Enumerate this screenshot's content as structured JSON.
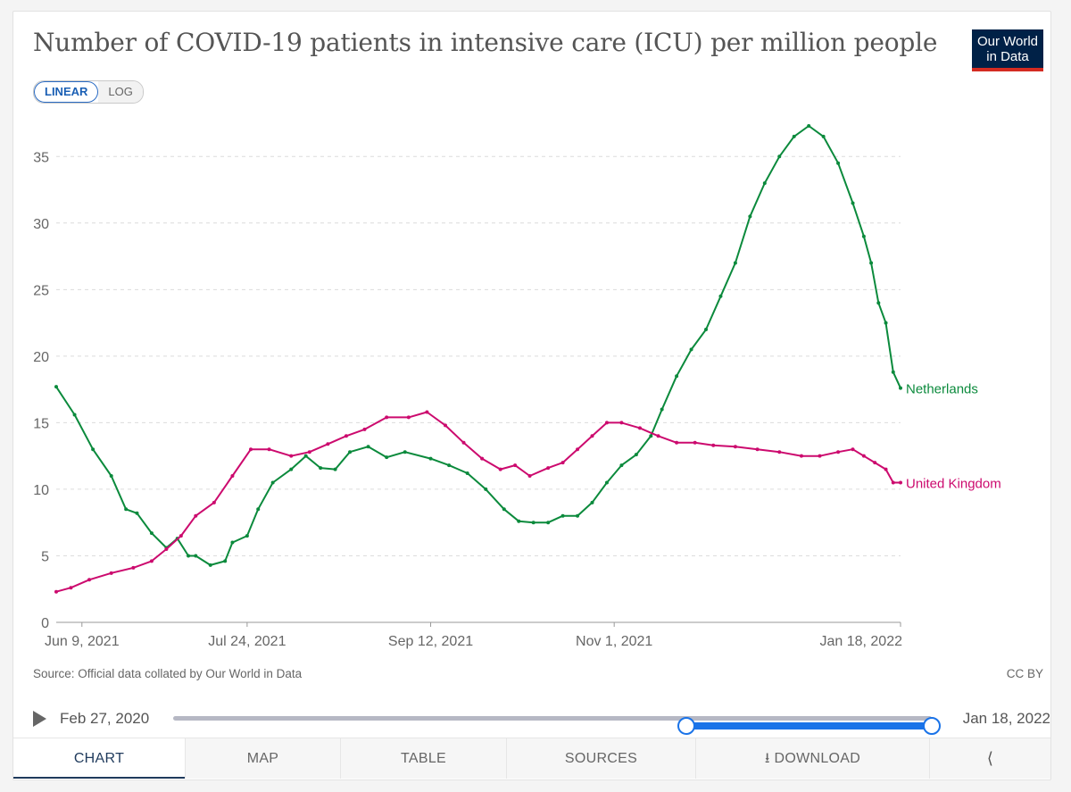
{
  "title": "Number of COVID-19 patients in intensive care (ICU) per million people",
  "logo": {
    "line1": "Our World",
    "line2": "in Data"
  },
  "scale_toggle": {
    "linear": "LINEAR",
    "log": "LOG",
    "selected": "LINEAR"
  },
  "source": "Source: Official data collated by Our World in Data",
  "license": "CC BY",
  "timeline": {
    "start_label": "Feb 27, 2020",
    "end_label": "Jan 18, 2022",
    "range_start_fraction": 0.677,
    "range_end_fraction": 1.0,
    "play_icon": "play-icon"
  },
  "tabs": [
    {
      "label": "CHART",
      "active": true
    },
    {
      "label": "MAP",
      "active": false
    },
    {
      "label": "TABLE",
      "active": false
    },
    {
      "label": "SOURCES",
      "active": false
    },
    {
      "label": "DOWNLOAD",
      "active": false,
      "icon": "download-icon"
    },
    {
      "label": "",
      "active": false,
      "icon": "share-icon"
    }
  ],
  "colors": {
    "netherlands": "#0b8a3c",
    "united_kingdom": "#cc0a6e",
    "accent": "#1a73e8",
    "logo_bg": "#002147",
    "logo_stripe": "#d42b21"
  },
  "chart_data": {
    "type": "line",
    "title": "Number of COVID-19 patients in intensive care (ICU) per million people",
    "xlabel": "",
    "ylabel": "",
    "x_range": [
      "2021-06-02",
      "2022-01-18"
    ],
    "ylim": [
      0,
      37.5
    ],
    "y_ticks": [
      0,
      5,
      10,
      15,
      20,
      25,
      30,
      35
    ],
    "x_ticks": [
      {
        "date": "2021-06-09",
        "label": "Jun 9, 2021"
      },
      {
        "date": "2021-07-24",
        "label": "Jul 24, 2021"
      },
      {
        "date": "2021-09-12",
        "label": "Sep 12, 2021"
      },
      {
        "date": "2021-11-01",
        "label": "Nov 1, 2021"
      },
      {
        "date": "2022-01-18",
        "label": "Jan 18, 2022"
      }
    ],
    "grid": "horizontal dashed",
    "legend": "inline labels at line ends",
    "series": [
      {
        "name": "Netherlands",
        "color": "#0b8a3c",
        "points": [
          [
            "2021-06-02",
            17.7
          ],
          [
            "2021-06-07",
            15.6
          ],
          [
            "2021-06-12",
            13.0
          ],
          [
            "2021-06-17",
            11.0
          ],
          [
            "2021-06-21",
            8.5
          ],
          [
            "2021-06-24",
            8.2
          ],
          [
            "2021-06-28",
            6.7
          ],
          [
            "2021-07-02",
            5.6
          ],
          [
            "2021-07-05",
            6.3
          ],
          [
            "2021-07-08",
            5.0
          ],
          [
            "2021-07-10",
            5.0
          ],
          [
            "2021-07-14",
            4.3
          ],
          [
            "2021-07-18",
            4.6
          ],
          [
            "2021-07-20",
            6.0
          ],
          [
            "2021-07-24",
            6.5
          ],
          [
            "2021-07-27",
            8.5
          ],
          [
            "2021-07-31",
            10.5
          ],
          [
            "2021-08-05",
            11.5
          ],
          [
            "2021-08-09",
            12.5
          ],
          [
            "2021-08-13",
            11.6
          ],
          [
            "2021-08-17",
            11.5
          ],
          [
            "2021-08-21",
            12.8
          ],
          [
            "2021-08-26",
            13.2
          ],
          [
            "2021-08-31",
            12.4
          ],
          [
            "2021-09-05",
            12.8
          ],
          [
            "2021-09-12",
            12.3
          ],
          [
            "2021-09-17",
            11.8
          ],
          [
            "2021-09-22",
            11.2
          ],
          [
            "2021-09-27",
            10.0
          ],
          [
            "2021-10-02",
            8.5
          ],
          [
            "2021-10-06",
            7.6
          ],
          [
            "2021-10-10",
            7.5
          ],
          [
            "2021-10-14",
            7.5
          ],
          [
            "2021-10-18",
            8.0
          ],
          [
            "2021-10-22",
            8.0
          ],
          [
            "2021-10-26",
            9.0
          ],
          [
            "2021-10-30",
            10.5
          ],
          [
            "2021-11-03",
            11.8
          ],
          [
            "2021-11-07",
            12.6
          ],
          [
            "2021-11-11",
            14.0
          ],
          [
            "2021-11-14",
            16.0
          ],
          [
            "2021-11-18",
            18.5
          ],
          [
            "2021-11-22",
            20.5
          ],
          [
            "2021-11-26",
            22.0
          ],
          [
            "2021-11-30",
            24.5
          ],
          [
            "2021-12-04",
            27.0
          ],
          [
            "2021-12-08",
            30.5
          ],
          [
            "2021-12-12",
            33.0
          ],
          [
            "2021-12-16",
            35.0
          ],
          [
            "2021-12-20",
            36.5
          ],
          [
            "2021-12-24",
            37.3
          ],
          [
            "2021-12-28",
            36.5
          ],
          [
            "2022-01-01",
            34.5
          ],
          [
            "2022-01-05",
            31.5
          ],
          [
            "2022-01-08",
            29.0
          ],
          [
            "2022-01-10",
            27.0
          ],
          [
            "2022-01-12",
            24.0
          ],
          [
            "2022-01-14",
            22.5
          ],
          [
            "2022-01-16",
            18.8
          ],
          [
            "2022-01-18",
            17.6
          ]
        ]
      },
      {
        "name": "United Kingdom",
        "color": "#cc0a6e",
        "points": [
          [
            "2021-06-02",
            2.3
          ],
          [
            "2021-06-06",
            2.6
          ],
          [
            "2021-06-11",
            3.2
          ],
          [
            "2021-06-17",
            3.7
          ],
          [
            "2021-06-23",
            4.1
          ],
          [
            "2021-06-28",
            4.6
          ],
          [
            "2021-07-02",
            5.5
          ],
          [
            "2021-07-06",
            6.5
          ],
          [
            "2021-07-10",
            8.0
          ],
          [
            "2021-07-15",
            9.0
          ],
          [
            "2021-07-20",
            11.0
          ],
          [
            "2021-07-25",
            13.0
          ],
          [
            "2021-07-30",
            13.0
          ],
          [
            "2021-08-05",
            12.5
          ],
          [
            "2021-08-10",
            12.8
          ],
          [
            "2021-08-15",
            13.4
          ],
          [
            "2021-08-20",
            14.0
          ],
          [
            "2021-08-25",
            14.5
          ],
          [
            "2021-08-31",
            15.4
          ],
          [
            "2021-09-06",
            15.4
          ],
          [
            "2021-09-11",
            15.8
          ],
          [
            "2021-09-16",
            14.8
          ],
          [
            "2021-09-21",
            13.5
          ],
          [
            "2021-09-26",
            12.3
          ],
          [
            "2021-10-01",
            11.5
          ],
          [
            "2021-10-05",
            11.8
          ],
          [
            "2021-10-09",
            11.0
          ],
          [
            "2021-10-14",
            11.6
          ],
          [
            "2021-10-18",
            12.0
          ],
          [
            "2021-10-22",
            13.0
          ],
          [
            "2021-10-26",
            14.0
          ],
          [
            "2021-10-30",
            15.0
          ],
          [
            "2021-11-03",
            15.0
          ],
          [
            "2021-11-08",
            14.6
          ],
          [
            "2021-11-13",
            14.0
          ],
          [
            "2021-11-18",
            13.5
          ],
          [
            "2021-11-23",
            13.5
          ],
          [
            "2021-11-28",
            13.3
          ],
          [
            "2021-12-04",
            13.2
          ],
          [
            "2021-12-10",
            13.0
          ],
          [
            "2021-12-16",
            12.8
          ],
          [
            "2021-12-22",
            12.5
          ],
          [
            "2021-12-27",
            12.5
          ],
          [
            "2022-01-01",
            12.8
          ],
          [
            "2022-01-05",
            13.0
          ],
          [
            "2022-01-08",
            12.5
          ],
          [
            "2022-01-11",
            12.0
          ],
          [
            "2022-01-14",
            11.5
          ],
          [
            "2022-01-16",
            10.5
          ],
          [
            "2022-01-18",
            10.5
          ]
        ]
      }
    ]
  }
}
